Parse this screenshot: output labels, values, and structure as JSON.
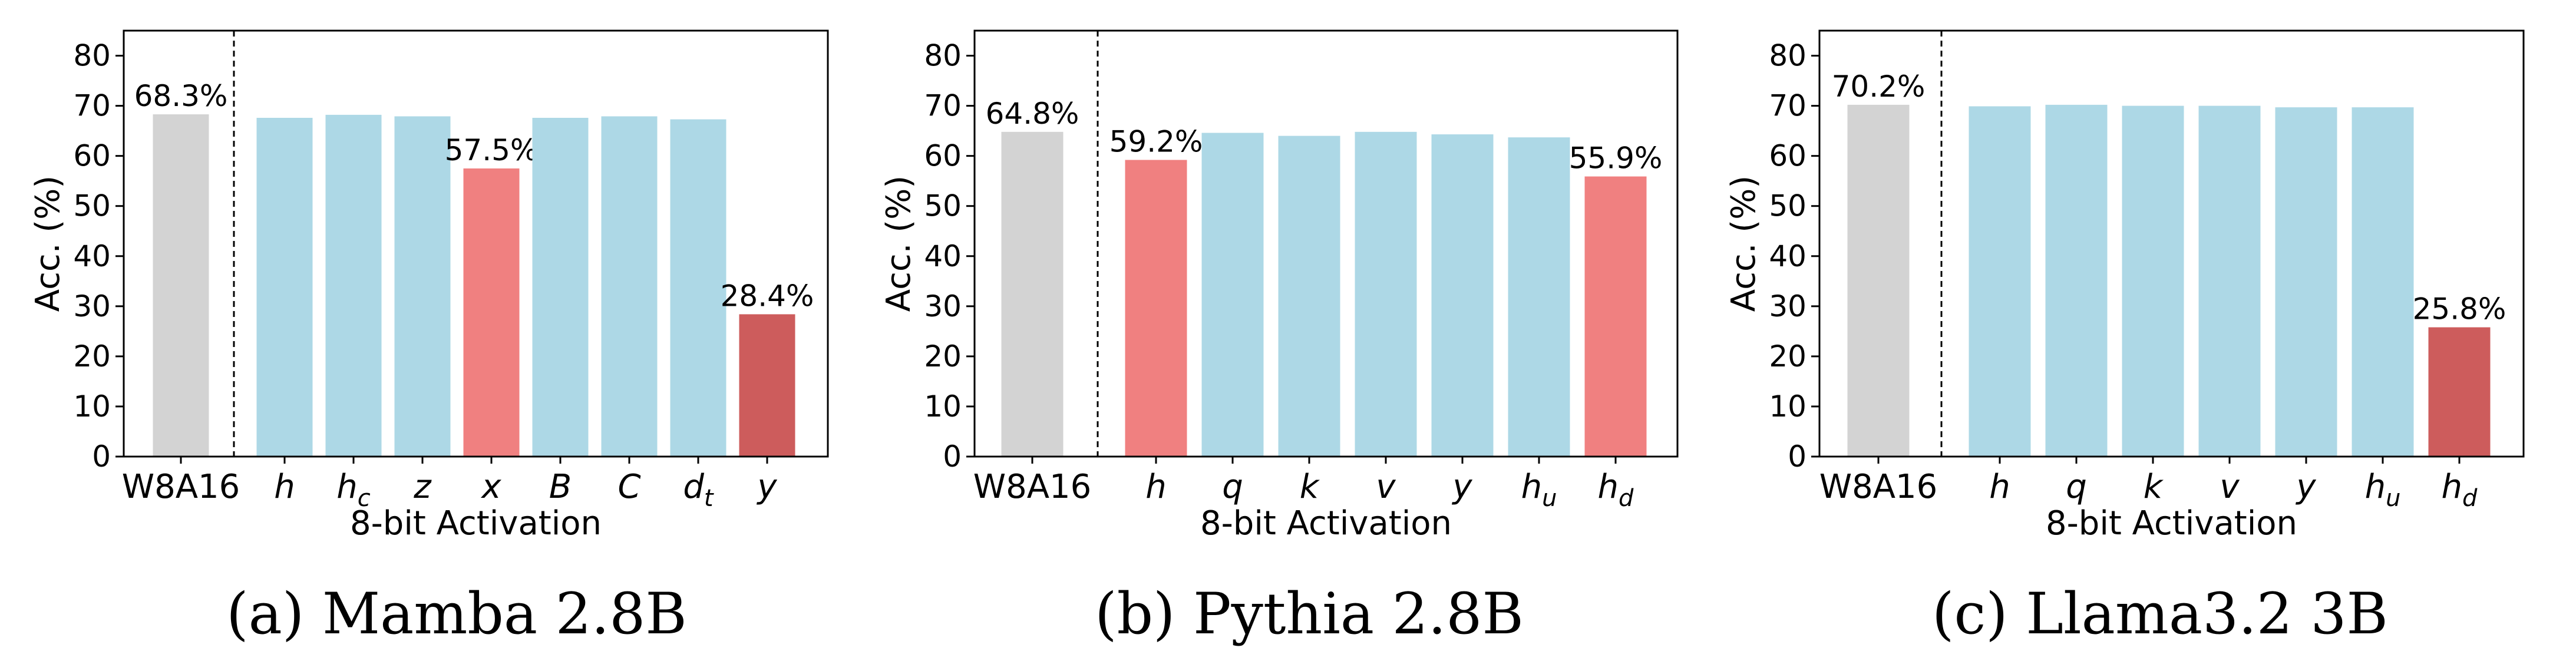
{
  "colors": {
    "baseline": "#d3d3d3",
    "normal": "#add8e6",
    "degraded": "#f08080",
    "severe": "#cd5c5c"
  },
  "chart_data": [
    {
      "type": "bar",
      "caption": "(a) Mamba 2.8B",
      "xlabel": "8-bit Activation",
      "ylabel": "Acc. (%)",
      "ylim": [
        0,
        85
      ],
      "yticks": [
        0,
        10,
        20,
        30,
        40,
        50,
        60,
        70,
        80
      ],
      "baseline": {
        "label": "W8A16",
        "value": 68.3,
        "annotation": "68.3%"
      },
      "bars": [
        {
          "base": "h",
          "sub": "",
          "value": 67.6,
          "status": "normal",
          "annotation": ""
        },
        {
          "base": "h",
          "sub": "c",
          "value": 68.2,
          "status": "normal",
          "annotation": ""
        },
        {
          "base": "z",
          "sub": "",
          "value": 67.9,
          "status": "normal",
          "annotation": ""
        },
        {
          "base": "x",
          "sub": "",
          "value": 57.5,
          "status": "degraded",
          "annotation": "57.5%"
        },
        {
          "base": "B",
          "sub": "",
          "value": 67.6,
          "status": "normal",
          "annotation": ""
        },
        {
          "base": "C",
          "sub": "",
          "value": 67.9,
          "status": "normal",
          "annotation": ""
        },
        {
          "base": "d",
          "sub": "t",
          "value": 67.3,
          "status": "normal",
          "annotation": ""
        },
        {
          "base": "y",
          "sub": "",
          "value": 28.4,
          "status": "severe",
          "annotation": "28.4%"
        }
      ]
    },
    {
      "type": "bar",
      "caption": "(b) Pythia 2.8B",
      "xlabel": "8-bit Activation",
      "ylabel": "Acc. (%)",
      "ylim": [
        0,
        85
      ],
      "yticks": [
        0,
        10,
        20,
        30,
        40,
        50,
        60,
        70,
        80
      ],
      "baseline": {
        "label": "W8A16",
        "value": 64.8,
        "annotation": "64.8%"
      },
      "bars": [
        {
          "base": "h",
          "sub": "",
          "value": 59.2,
          "status": "degraded",
          "annotation": "59.2%"
        },
        {
          "base": "q",
          "sub": "",
          "value": 64.6,
          "status": "normal",
          "annotation": ""
        },
        {
          "base": "k",
          "sub": "",
          "value": 64.0,
          "status": "normal",
          "annotation": ""
        },
        {
          "base": "v",
          "sub": "",
          "value": 64.8,
          "status": "normal",
          "annotation": ""
        },
        {
          "base": "y",
          "sub": "",
          "value": 64.3,
          "status": "normal",
          "annotation": ""
        },
        {
          "base": "h",
          "sub": "u",
          "value": 63.7,
          "status": "normal",
          "annotation": ""
        },
        {
          "base": "h",
          "sub": "d",
          "value": 55.9,
          "status": "degraded",
          "annotation": "55.9%"
        }
      ]
    },
    {
      "type": "bar",
      "caption": "(c) Llama3.2 3B",
      "xlabel": "8-bit Activation",
      "ylabel": "Acc. (%)",
      "ylim": [
        0,
        85
      ],
      "yticks": [
        0,
        10,
        20,
        30,
        40,
        50,
        60,
        70,
        80
      ],
      "baseline": {
        "label": "W8A16",
        "value": 70.2,
        "annotation": "70.2%"
      },
      "bars": [
        {
          "base": "h",
          "sub": "",
          "value": 69.9,
          "status": "normal",
          "annotation": ""
        },
        {
          "base": "q",
          "sub": "",
          "value": 70.2,
          "status": "normal",
          "annotation": ""
        },
        {
          "base": "k",
          "sub": "",
          "value": 70.0,
          "status": "normal",
          "annotation": ""
        },
        {
          "base": "v",
          "sub": "",
          "value": 70.0,
          "status": "normal",
          "annotation": ""
        },
        {
          "base": "y",
          "sub": "",
          "value": 69.7,
          "status": "normal",
          "annotation": ""
        },
        {
          "base": "h",
          "sub": "u",
          "value": 69.7,
          "status": "normal",
          "annotation": ""
        },
        {
          "base": "h",
          "sub": "d",
          "value": 25.8,
          "status": "severe",
          "annotation": "25.8%"
        }
      ]
    }
  ]
}
